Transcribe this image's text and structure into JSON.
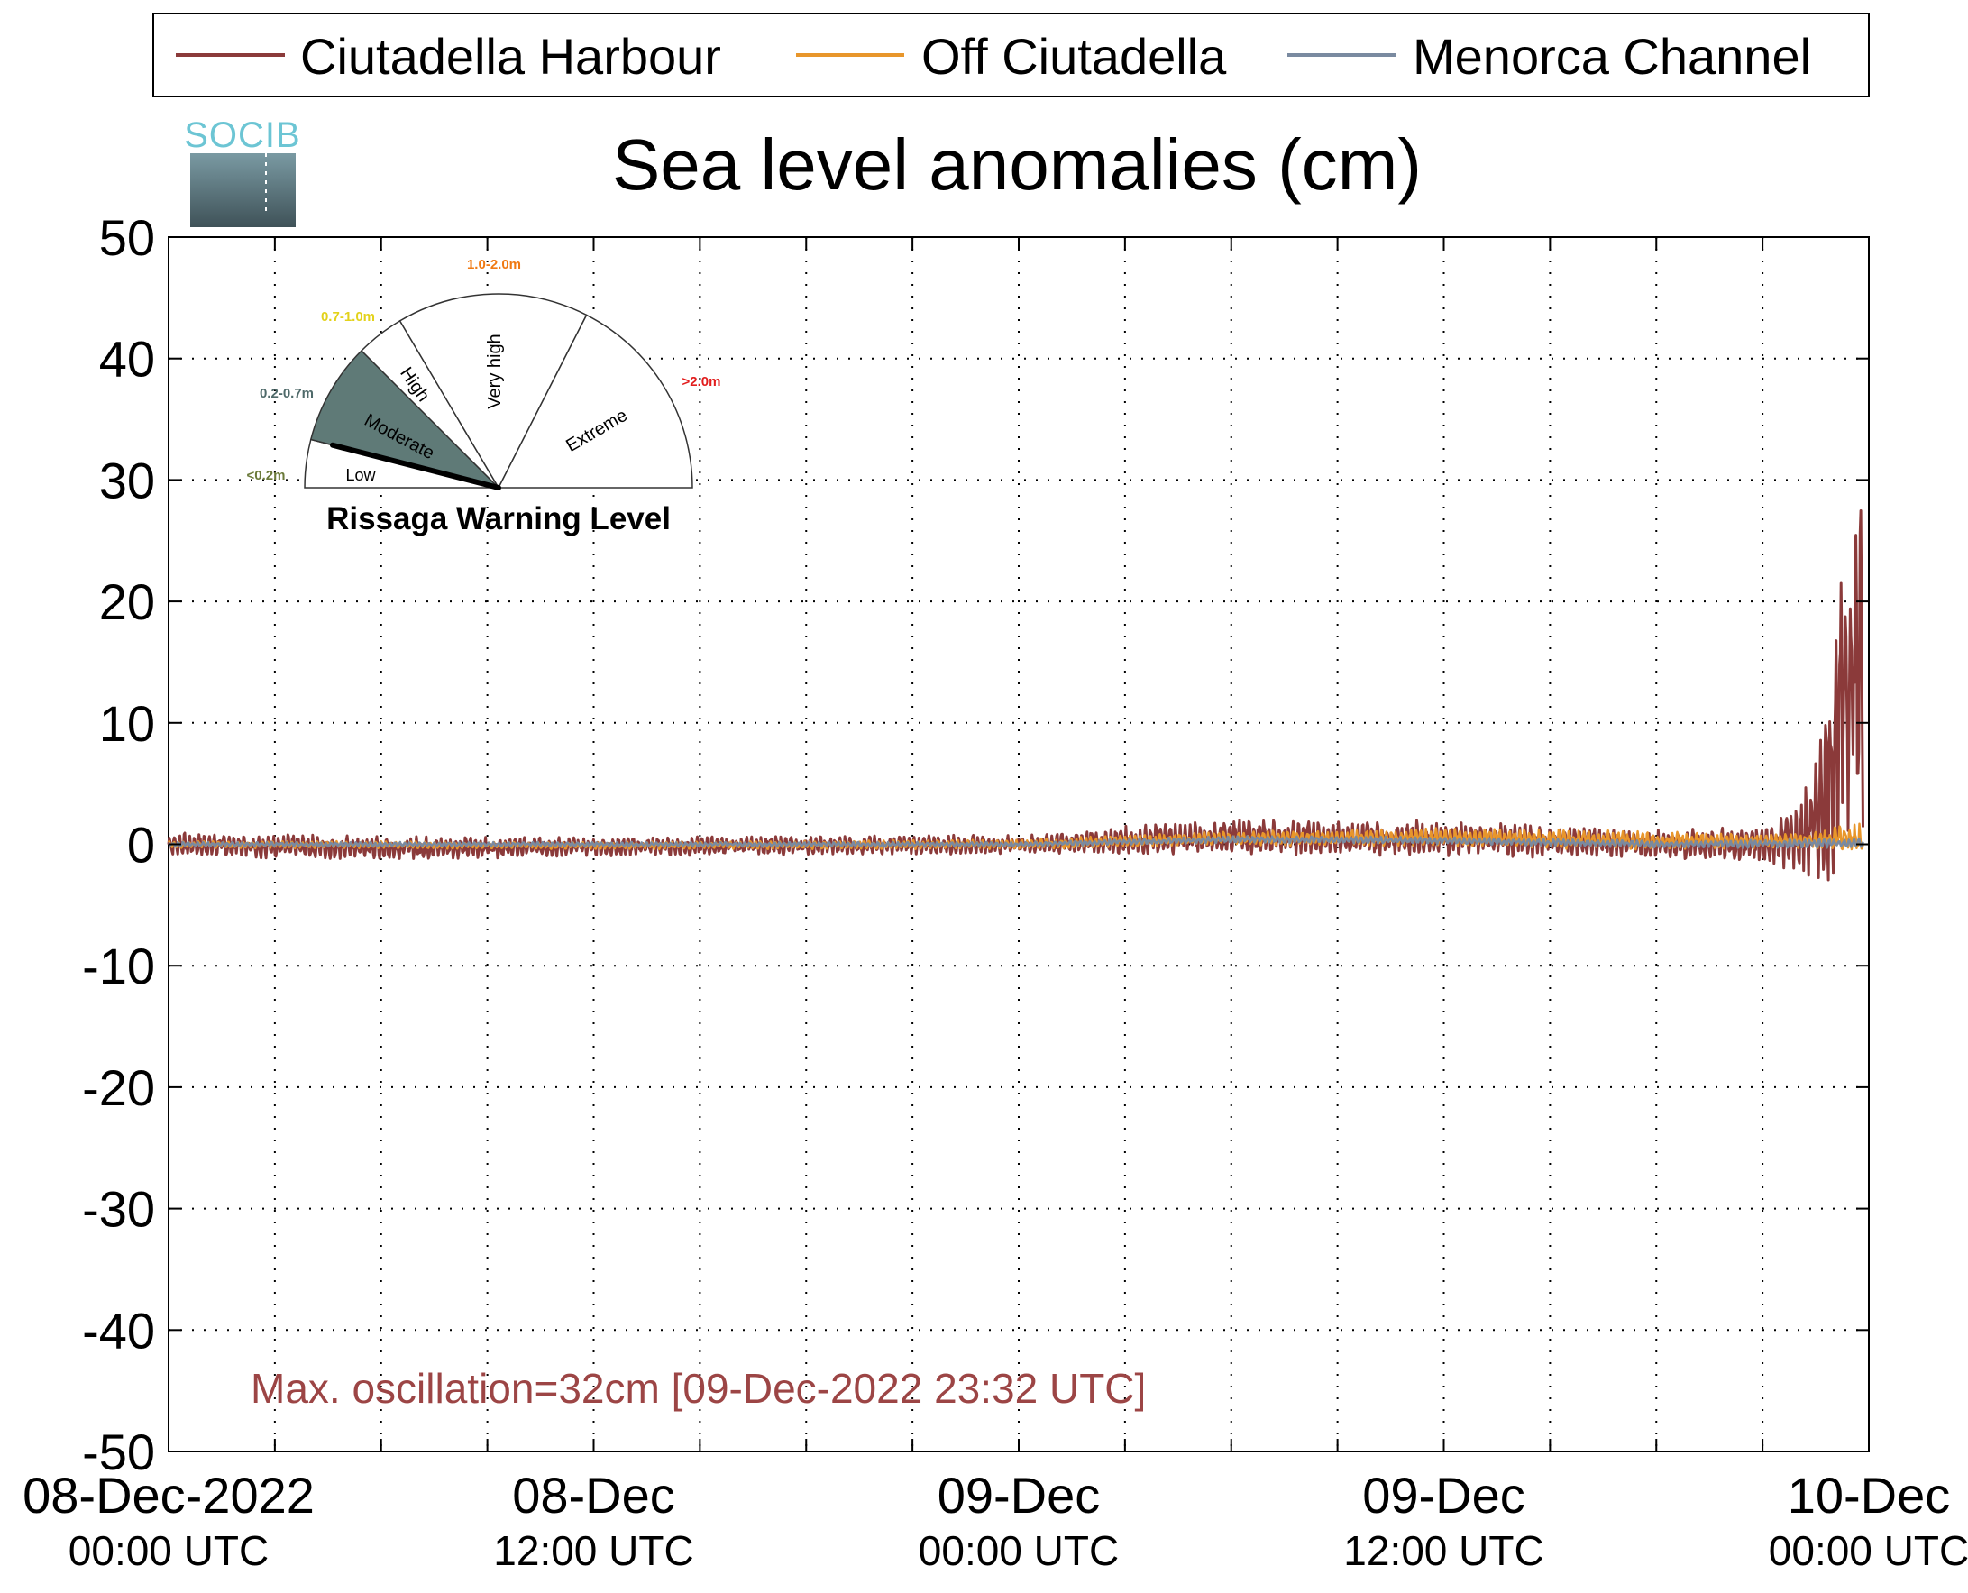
{
  "chart_data": {
    "type": "line",
    "title": "Sea level anomalies (cm)",
    "xlabel": "",
    "ylabel": "",
    "x_range": [
      "2022-12-08T00:00Z",
      "2022-12-10T00:00Z"
    ],
    "ylim": [
      -50,
      50
    ],
    "y_ticks": [
      "50",
      "40",
      "30",
      "20",
      "10",
      "0",
      "-10",
      "-20",
      "-30",
      "-40",
      "-50"
    ],
    "x_ticks": [
      {
        "line1": "08-Dec-2022",
        "line2": "00:00 UTC"
      },
      {
        "line1": "08-Dec",
        "line2": "12:00 UTC"
      },
      {
        "line1": "09-Dec",
        "line2": "00:00 UTC"
      },
      {
        "line1": "09-Dec",
        "line2": "12:00 UTC"
      },
      {
        "line1": "10-Dec",
        "line2": "00:00 UTC"
      }
    ],
    "grid": true,
    "legend_position": "top",
    "series": [
      {
        "name": "Ciutadella Harbour",
        "color": "#8b3a3a",
        "x": [
          "2022-12-08T00:00Z",
          "2022-12-08T06:00Z",
          "2022-12-08T12:00Z",
          "2022-12-08T18:00Z",
          "2022-12-09T00:00Z",
          "2022-12-09T03:00Z",
          "2022-12-09T06:00Z",
          "2022-12-09T12:00Z",
          "2022-12-09T18:00Z",
          "2022-12-09T21:00Z",
          "2022-12-09T22:00Z",
          "2022-12-09T22:30Z",
          "2022-12-09T23:00Z",
          "2022-12-09T23:32Z",
          "2022-12-09T23:50Z"
        ],
        "values": [
          0,
          -0.3,
          -0.2,
          -0.1,
          0,
          0.3,
          0.6,
          0.5,
          0,
          0,
          0.5,
          2,
          7,
          16,
          14
        ],
        "envelope_half_amplitude": [
          1,
          1,
          0.8,
          0.8,
          0.8,
          1.2,
          1.5,
          1.5,
          1.2,
          1.5,
          3,
          5,
          10,
          16,
          15
        ]
      },
      {
        "name": "Off Ciutadella",
        "color": "#e8962b",
        "x": [
          "2022-12-08T00:00Z",
          "2022-12-08T12:00Z",
          "2022-12-09T00:00Z",
          "2022-12-09T06:00Z",
          "2022-12-09T12:00Z",
          "2022-12-09T18:00Z",
          "2022-12-09T22:00Z",
          "2022-12-09T23:00Z",
          "2022-12-09T23:50Z"
        ],
        "values": [
          0,
          -0.1,
          0,
          0.5,
          0.6,
          0.3,
          0.3,
          0.5,
          0.5
        ],
        "envelope_half_amplitude": [
          0.3,
          0.3,
          0.4,
          0.6,
          0.8,
          0.8,
          0.6,
          1,
          1.3
        ]
      },
      {
        "name": "Menorca Channel",
        "color": "#7a8aa0",
        "x": [
          "2022-12-08T00:00Z",
          "2022-12-08T12:00Z",
          "2022-12-09T00:00Z",
          "2022-12-09T06:00Z",
          "2022-12-09T12:00Z",
          "2022-12-09T18:00Z",
          "2022-12-09T23:50Z"
        ],
        "values": [
          0,
          0,
          0,
          0.4,
          0.3,
          0,
          0.1
        ],
        "envelope_half_amplitude": [
          0.2,
          0.2,
          0.2,
          0.3,
          0.3,
          0.3,
          0.4
        ]
      }
    ],
    "annotation": "Max. oscillation=32cm [09-Dec-2022 23:32 UTC]",
    "annotation_color": "#9c4545"
  },
  "logo": {
    "text": "SOCIB"
  },
  "gauge": {
    "title": "Rissaga Warning Level",
    "current_level": "Moderate",
    "needle_fraction": 0.08,
    "sectors": [
      {
        "label": "Low",
        "range": "<0.2m",
        "range_color": "#6b7a3a",
        "fill": "#ffffff"
      },
      {
        "label": "Moderate",
        "range": "0.2-0.7m",
        "range_color": "#4f6a6a",
        "fill": "#5f7a77"
      },
      {
        "label": "High",
        "range": "0.7-1.0m",
        "range_color": "#e3d21b",
        "fill": "#ffffff"
      },
      {
        "label": "Very high",
        "range": "1.0-2.0m",
        "range_color": "#f07a13",
        "fill": "#ffffff"
      },
      {
        "label": "Extreme",
        "range": ">2.0m",
        "range_color": "#e21d1d",
        "fill": "#ffffff"
      }
    ]
  }
}
